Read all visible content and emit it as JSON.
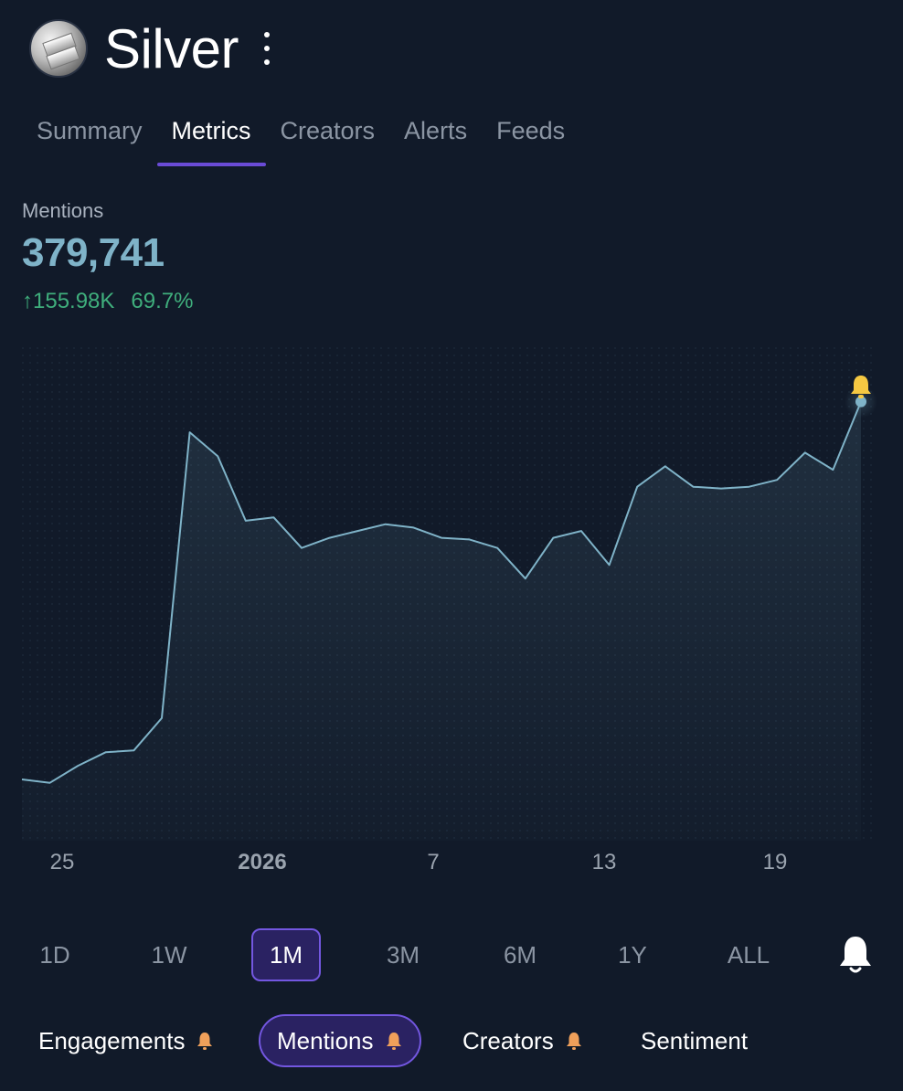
{
  "header": {
    "title": "Silver",
    "avatar_icon": "silver-bars-avatar",
    "menu_icon": "kebab-menu-icon"
  },
  "tabs": [
    {
      "label": "Summary",
      "active": false
    },
    {
      "label": "Metrics",
      "active": true
    },
    {
      "label": "Creators",
      "active": false
    },
    {
      "label": "Alerts",
      "active": false
    },
    {
      "label": "Feeds",
      "active": false
    }
  ],
  "metric": {
    "label": "Mentions",
    "value": "379,741",
    "change_abs": "↑155.98K",
    "change_pct": "69.7%",
    "value_color": "#7fb3c8",
    "change_color": "#3fae7c"
  },
  "chart_data": {
    "type": "area",
    "x_tick_labels": [
      "25",
      "2026",
      "7",
      "13",
      "19"
    ],
    "series": [
      {
        "values": [
          78,
          77,
          82,
          86,
          86.5,
          96,
          180,
          173,
          154,
          155,
          146,
          149,
          151,
          153,
          152,
          149,
          148.5,
          146,
          137,
          149,
          151,
          141,
          164,
          170,
          164,
          163.5,
          164,
          166,
          174,
          169,
          189
        ]
      }
    ],
    "line_color": "#7fb3c8",
    "alert_color": "#f5c842"
  },
  "ranges": [
    {
      "label": "1D",
      "active": false
    },
    {
      "label": "1W",
      "active": false
    },
    {
      "label": "1M",
      "active": true
    },
    {
      "label": "3M",
      "active": false
    },
    {
      "label": "6M",
      "active": false
    },
    {
      "label": "1Y",
      "active": false
    },
    {
      "label": "ALL",
      "active": false
    }
  ],
  "pills": [
    {
      "label": "Engagements",
      "bell": true,
      "active": false
    },
    {
      "label": "Mentions",
      "bell": true,
      "active": true
    },
    {
      "label": "Creators",
      "bell": true,
      "active": false
    },
    {
      "label": "Sentiment",
      "bell": false,
      "active": false
    }
  ],
  "colors": {
    "accent": "#6a4bd6",
    "background": "#111a29",
    "bell_orange": "#f0a05a"
  }
}
